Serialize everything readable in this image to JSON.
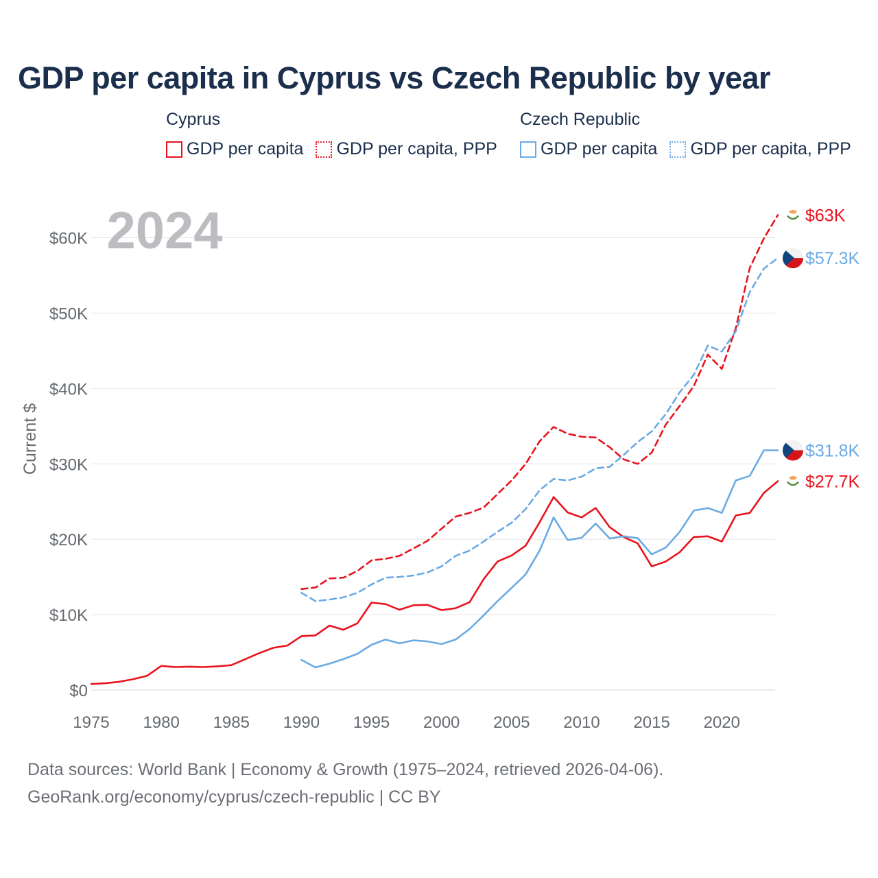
{
  "title": "GDP per capita in Cyprus vs Czech Republic by year",
  "legend": {
    "groups": [
      {
        "name": "Cyprus",
        "items": [
          {
            "label": "GDP per capita",
            "style": "solid",
            "color": "#e8131c"
          },
          {
            "label": "GDP per capita, PPP",
            "style": "dotted",
            "color": "#e8131c"
          }
        ]
      },
      {
        "name": "Czech Republic",
        "items": [
          {
            "label": "GDP per capita",
            "style": "solid",
            "color": "#6aaae4"
          },
          {
            "label": "GDP per capita, PPP",
            "style": "dotted",
            "color": "#6aaae4"
          }
        ]
      }
    ]
  },
  "year_watermark": "2024",
  "footer": {
    "line1": "Data sources: World Bank | Economy & Growth (1975–2024, retrieved 2026-04-06).",
    "line2": "GeoRank.org/economy/cyprus/czech-republic | CC BY"
  },
  "chart_data": {
    "type": "line",
    "title": "GDP per capita in Cyprus vs Czech Republic by year",
    "xlabel": "",
    "ylabel": "Current $",
    "xlim": [
      1975,
      2024
    ],
    "ylim": [
      0,
      64000
    ],
    "x_ticks": [
      1975,
      1980,
      1985,
      1990,
      1995,
      2000,
      2005,
      2010,
      2015,
      2020
    ],
    "y_ticks": [
      {
        "value": 0,
        "label": "$0"
      },
      {
        "value": 10000,
        "label": "$10K"
      },
      {
        "value": 20000,
        "label": "$20K"
      },
      {
        "value": 30000,
        "label": "$30K"
      },
      {
        "value": 40000,
        "label": "$40K"
      },
      {
        "value": 50000,
        "label": "$50K"
      },
      {
        "value": 60000,
        "label": "$60K"
      }
    ],
    "grid": true,
    "series": [
      {
        "name": "Cyprus GDP per capita",
        "country": "Cyprus",
        "color": "#e8131c",
        "dashed": false,
        "end_label": "$27.7K",
        "x": [
          1975,
          1976,
          1977,
          1978,
          1979,
          1980,
          1981,
          1982,
          1983,
          1984,
          1985,
          1986,
          1987,
          1988,
          1989,
          1990,
          1991,
          1992,
          1993,
          1994,
          1995,
          1996,
          1997,
          1998,
          1999,
          2000,
          2001,
          2002,
          2003,
          2004,
          2005,
          2006,
          2007,
          2008,
          2009,
          2010,
          2011,
          2012,
          2013,
          2014,
          2015,
          2016,
          2017,
          2018,
          2019,
          2020,
          2021,
          2022,
          2023,
          2024
        ],
        "values": [
          800,
          900,
          1100,
          1450,
          1900,
          3200,
          3050,
          3100,
          3050,
          3150,
          3300,
          4100,
          4900,
          5600,
          5900,
          7150,
          7250,
          8550,
          8000,
          8850,
          11600,
          11400,
          10650,
          11250,
          11300,
          10600,
          10850,
          11650,
          14700,
          17050,
          17850,
          19150,
          22250,
          25600,
          23550,
          22900,
          24150,
          21600,
          20300,
          19450,
          16400,
          17050,
          18300,
          20300,
          20400,
          19700,
          23150,
          23500,
          26150,
          27700
        ]
      },
      {
        "name": "Cyprus GDP per capita, PPP",
        "country": "Cyprus",
        "color": "#e8131c",
        "dashed": true,
        "end_label": "$63K",
        "x": [
          1990,
          1991,
          1992,
          1993,
          1994,
          1995,
          1996,
          1997,
          1998,
          1999,
          2000,
          2001,
          2002,
          2003,
          2004,
          2005,
          2006,
          2007,
          2008,
          2009,
          2010,
          2011,
          2012,
          2013,
          2014,
          2015,
          2016,
          2017,
          2018,
          2019,
          2020,
          2021,
          2022,
          2023,
          2024
        ],
        "values": [
          13400,
          13600,
          14800,
          14900,
          15800,
          17200,
          17400,
          17800,
          18800,
          19800,
          21400,
          23000,
          23500,
          24200,
          26000,
          27800,
          30000,
          33000,
          34900,
          34000,
          33600,
          33500,
          32200,
          30600,
          30000,
          31500,
          35200,
          37700,
          40300,
          44500,
          42600,
          48000,
          56000,
          59900,
          63000
        ]
      },
      {
        "name": "Czech Republic GDP per capita",
        "country": "Czech Republic",
        "color": "#6aaae4",
        "dashed": false,
        "end_label": "$31.8K",
        "x": [
          1990,
          1991,
          1992,
          1993,
          1994,
          1995,
          1996,
          1997,
          1998,
          1999,
          2000,
          2001,
          2002,
          2003,
          2004,
          2005,
          2006,
          2007,
          2008,
          2009,
          2010,
          2011,
          2012,
          2013,
          2014,
          2015,
          2016,
          2017,
          2018,
          2019,
          2020,
          2021,
          2022,
          2023,
          2024
        ],
        "values": [
          4000,
          3000,
          3500,
          4100,
          4800,
          6000,
          6700,
          6200,
          6600,
          6450,
          6100,
          6700,
          8100,
          9900,
          11800,
          13550,
          15350,
          18500,
          22900,
          19900,
          20200,
          22100,
          20100,
          20400,
          20150,
          18000,
          18900,
          21000,
          23800,
          24150,
          23500,
          27800,
          28400,
          31800,
          31800
        ]
      },
      {
        "name": "Czech Republic GDP per capita, PPP",
        "country": "Czech Republic",
        "color": "#6aaae4",
        "dashed": true,
        "end_label": "$57.3K",
        "x": [
          1990,
          1991,
          1992,
          1993,
          1994,
          1995,
          1996,
          1997,
          1998,
          1999,
          2000,
          2001,
          2002,
          2003,
          2004,
          2005,
          2006,
          2007,
          2008,
          2009,
          2010,
          2011,
          2012,
          2013,
          2014,
          2015,
          2016,
          2017,
          2018,
          2019,
          2020,
          2021,
          2022,
          2023,
          2024
        ],
        "values": [
          12900,
          11800,
          12000,
          12300,
          12900,
          14000,
          14900,
          15000,
          15200,
          15600,
          16400,
          17800,
          18500,
          19700,
          21000,
          22200,
          24000,
          26500,
          28000,
          27800,
          28300,
          29400,
          29600,
          31200,
          32900,
          34300,
          36600,
          39500,
          41800,
          45700,
          44900,
          47600,
          52800,
          55900,
          57300
        ]
      }
    ]
  }
}
